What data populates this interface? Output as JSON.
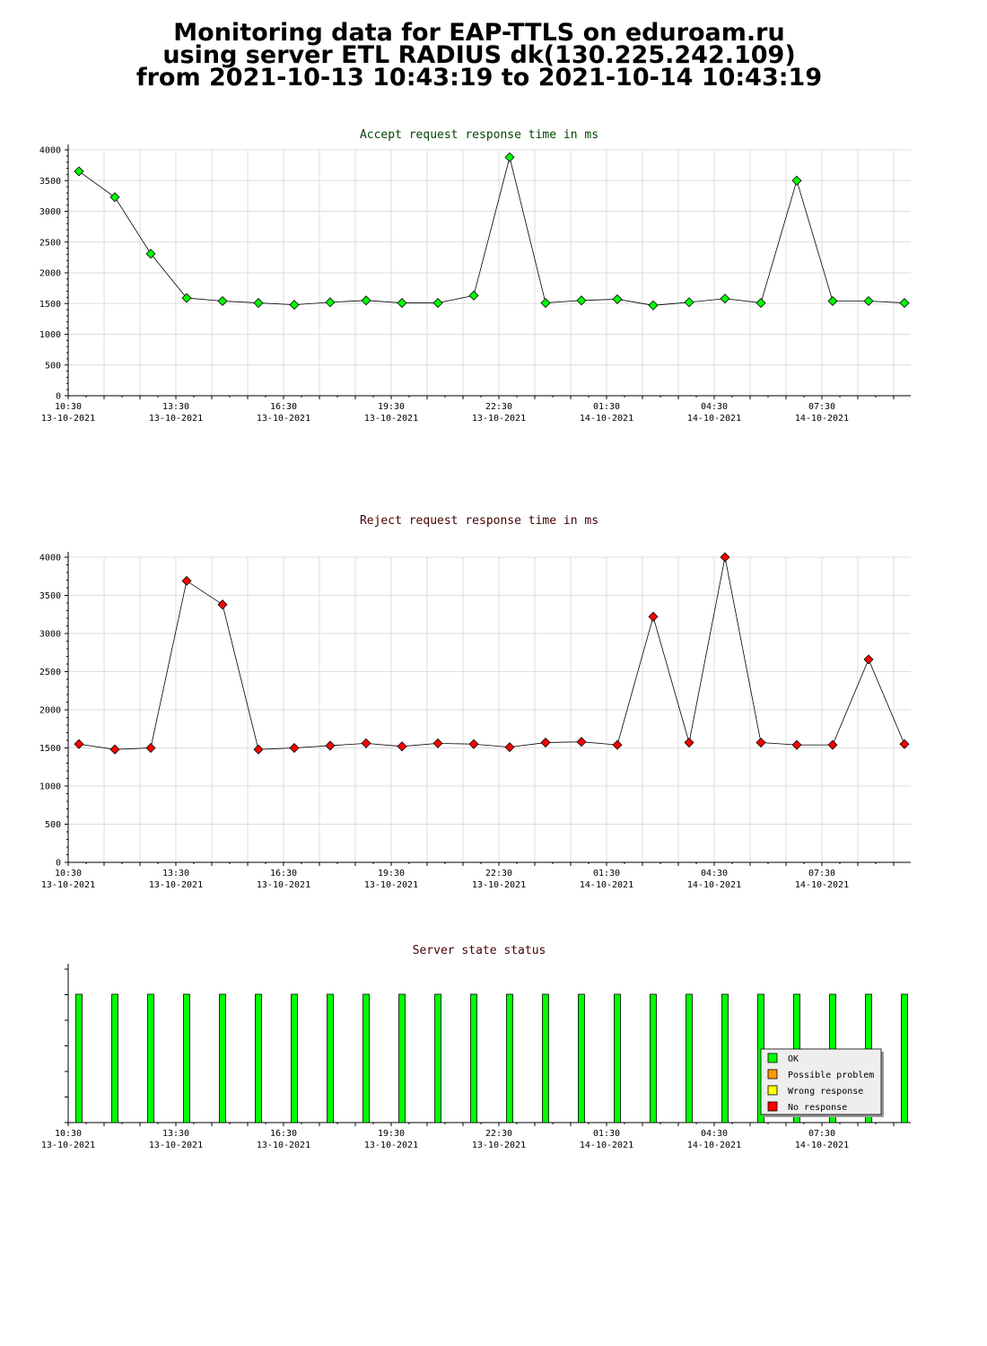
{
  "page": {
    "title_lines": [
      "Monitoring data for EAP-TTLS on eduroam.ru",
      "using server ETL RADIUS dk(130.225.242.109)",
      "from 2021-10-13 10:43:19 to 2021-10-14 10:43:19"
    ]
  },
  "colors": {
    "accept": "#00ff00",
    "reject": "#ff0000",
    "accept_title": "#004400",
    "reject_title": "#440000",
    "grid": "#dddddd"
  },
  "chart_data": [
    {
      "type": "line",
      "title": "Accept request response time in ms",
      "ylim": [
        0,
        4000
      ],
      "yticks": [
        0,
        500,
        1000,
        1500,
        2000,
        2500,
        3000,
        3500,
        4000
      ],
      "xticks": [
        {
          "time": "10:30",
          "date": "13-10-2021"
        },
        {
          "time": "13:30",
          "date": "13-10-2021"
        },
        {
          "time": "16:30",
          "date": "13-10-2021"
        },
        {
          "time": "19:30",
          "date": "13-10-2021"
        },
        {
          "time": "22:30",
          "date": "13-10-2021"
        },
        {
          "time": "01:30",
          "date": "14-10-2021"
        },
        {
          "time": "04:30",
          "date": "14-10-2021"
        },
        {
          "time": "07:30",
          "date": "14-10-2021"
        }
      ],
      "x": [
        "2021-10-13 10:48",
        "2021-10-13 11:48",
        "2021-10-13 12:48",
        "2021-10-13 13:48",
        "2021-10-13 14:48",
        "2021-10-13 15:48",
        "2021-10-13 16:48",
        "2021-10-13 17:48",
        "2021-10-13 18:48",
        "2021-10-13 19:48",
        "2021-10-13 20:48",
        "2021-10-13 21:48",
        "2021-10-13 22:48",
        "2021-10-13 23:48",
        "2021-10-14 00:48",
        "2021-10-14 01:48",
        "2021-10-14 02:48",
        "2021-10-14 03:48",
        "2021-10-14 04:48",
        "2021-10-14 05:48",
        "2021-10-14 06:48",
        "2021-10-14 07:48",
        "2021-10-14 08:48",
        "2021-10-14 09:48"
      ],
      "series": [
        {
          "values": [
            3650,
            3230,
            2310,
            1590,
            1540,
            1510,
            1480,
            1520,
            1550,
            1510,
            1510,
            1630,
            3880,
            1510,
            1550,
            1570,
            1470,
            1520,
            1580,
            1510,
            3500,
            1540,
            1540,
            1510
          ]
        }
      ],
      "grid": true
    },
    {
      "type": "line",
      "title": "Reject request response time in ms",
      "ylim": [
        0,
        4000
      ],
      "yticks": [
        0,
        500,
        1000,
        1500,
        2000,
        2500,
        3000,
        3500,
        4000
      ],
      "xticks": [
        {
          "time": "10:30",
          "date": "13-10-2021"
        },
        {
          "time": "13:30",
          "date": "13-10-2021"
        },
        {
          "time": "16:30",
          "date": "13-10-2021"
        },
        {
          "time": "19:30",
          "date": "13-10-2021"
        },
        {
          "time": "22:30",
          "date": "13-10-2021"
        },
        {
          "time": "01:30",
          "date": "14-10-2021"
        },
        {
          "time": "04:30",
          "date": "14-10-2021"
        },
        {
          "time": "07:30",
          "date": "14-10-2021"
        }
      ],
      "x": [
        "2021-10-13 10:48",
        "2021-10-13 11:48",
        "2021-10-13 12:48",
        "2021-10-13 13:48",
        "2021-10-13 14:48",
        "2021-10-13 15:48",
        "2021-10-13 16:48",
        "2021-10-13 17:48",
        "2021-10-13 18:48",
        "2021-10-13 19:48",
        "2021-10-13 20:48",
        "2021-10-13 21:48",
        "2021-10-13 22:48",
        "2021-10-13 23:48",
        "2021-10-14 00:48",
        "2021-10-14 01:48",
        "2021-10-14 02:48",
        "2021-10-14 03:48",
        "2021-10-14 04:48",
        "2021-10-14 05:48",
        "2021-10-14 06:48",
        "2021-10-14 07:48",
        "2021-10-14 08:48",
        "2021-10-14 09:48"
      ],
      "series": [
        {
          "values": [
            1550,
            1480,
            1500,
            3690,
            3380,
            1480,
            1500,
            1530,
            1560,
            1520,
            1560,
            1550,
            1510,
            1570,
            1580,
            1540,
            3220,
            1570,
            4000,
            1570,
            1540,
            1540,
            2660,
            1550
          ]
        }
      ],
      "grid": true
    },
    {
      "type": "bar",
      "title": "Server state status",
      "xticks": [
        {
          "time": "10:30",
          "date": "13-10-2021"
        },
        {
          "time": "13:30",
          "date": "13-10-2021"
        },
        {
          "time": "16:30",
          "date": "13-10-2021"
        },
        {
          "time": "19:30",
          "date": "13-10-2021"
        },
        {
          "time": "22:30",
          "date": "13-10-2021"
        },
        {
          "time": "01:30",
          "date": "14-10-2021"
        },
        {
          "time": "04:30",
          "date": "14-10-2021"
        },
        {
          "time": "07:30",
          "date": "14-10-2021"
        }
      ],
      "x": [
        "2021-10-13 10:48",
        "2021-10-13 11:48",
        "2021-10-13 12:48",
        "2021-10-13 13:48",
        "2021-10-13 14:48",
        "2021-10-13 15:48",
        "2021-10-13 16:48",
        "2021-10-13 17:48",
        "2021-10-13 18:48",
        "2021-10-13 19:48",
        "2021-10-13 20:48",
        "2021-10-13 21:48",
        "2021-10-13 22:48",
        "2021-10-13 23:48",
        "2021-10-14 00:48",
        "2021-10-14 01:48",
        "2021-10-14 02:48",
        "2021-10-14 03:48",
        "2021-10-14 04:48",
        "2021-10-14 05:48",
        "2021-10-14 06:48",
        "2021-10-14 07:48",
        "2021-10-14 08:48",
        "2021-10-14 09:48"
      ],
      "states": [
        "OK",
        "OK",
        "OK",
        "OK",
        "OK",
        "OK",
        "OK",
        "OK",
        "OK",
        "OK",
        "OK",
        "OK",
        "OK",
        "OK",
        "OK",
        "OK",
        "OK",
        "OK",
        "OK",
        "OK",
        "OK",
        "OK",
        "OK",
        "OK"
      ],
      "legend": [
        {
          "label": "OK",
          "color": "#00ff00"
        },
        {
          "label": "Possible problem",
          "color": "#ff9900"
        },
        {
          "label": "Wrong response",
          "color": "#ffff00"
        },
        {
          "label": "No response",
          "color": "#ff0000"
        }
      ],
      "legend_position": "bottom-right"
    }
  ]
}
